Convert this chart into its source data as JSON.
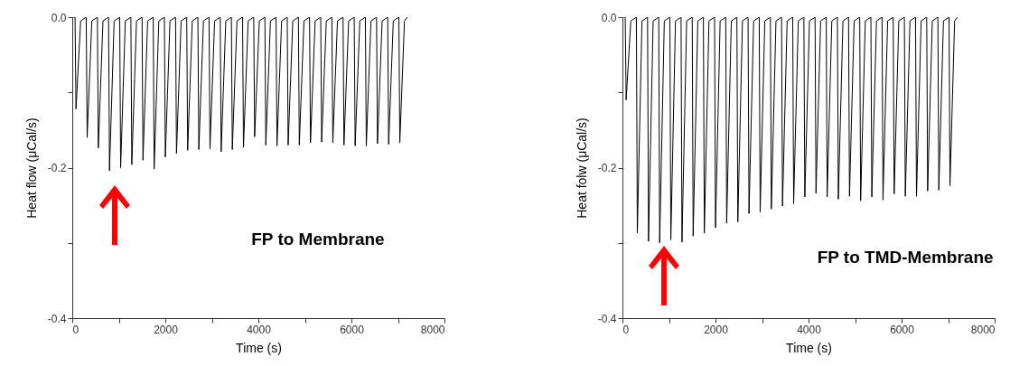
{
  "chart_data": [
    {
      "type": "line",
      "xlabel": "Time (s)",
      "ylabel": "Heat flow (μCal/s)",
      "annotations": [
        "FP to Membrane"
      ],
      "xlim": [
        0,
        8000
      ],
      "ylim": [
        -0.4,
        0
      ],
      "xticks": [
        0,
        {
          "value": 1000,
          "label": null
        },
        2000,
        {
          "value": 3000,
          "label": null
        },
        4000,
        {
          "value": 5000,
          "label": null
        },
        6000,
        {
          "value": 7000,
          "label": null
        },
        8000
      ],
      "yticks": [
        {
          "value": -0.4,
          "label": "-0.4"
        },
        {
          "value": -0.3,
          "label": null
        },
        {
          "value": -0.2,
          "label": "-0.2"
        },
        {
          "value": -0.1,
          "label": null
        },
        {
          "value": 0,
          "label": "0.0"
        }
      ],
      "grid": false,
      "marker": "none",
      "line_style": "solid",
      "series": [
        {
          "color": "#000000",
          "x": [
            0,
            60,
            80,
            180,
            300,
            320,
            420,
            540,
            560,
            660,
            780,
            800,
            900,
            1020,
            1040,
            1140,
            1260,
            1280,
            1380,
            1500,
            1520,
            1620,
            1740,
            1760,
            1860,
            1980,
            2000,
            2100,
            2220,
            2240,
            2340,
            2460,
            2480,
            2580,
            2700,
            2720,
            2820,
            2940,
            2960,
            3060,
            3180,
            3200,
            3300,
            3420,
            3440,
            3540,
            3660,
            3680,
            3780,
            3900,
            3920,
            4020,
            4140,
            4160,
            4260,
            4380,
            4400,
            4500,
            4620,
            4640,
            4740,
            4860,
            4880,
            4980,
            5100,
            5120,
            5220,
            5340,
            5360,
            5460,
            5580,
            5600,
            5700,
            5820,
            5840,
            5940,
            6060,
            6080,
            6180,
            6300,
            6320,
            6420,
            6540,
            6560,
            6660,
            6780,
            6800,
            6900,
            7020,
            7040,
            7140,
            7200
          ],
          "values": [
            0,
            0,
            -0.122,
            -0.005,
            0,
            -0.16,
            -0.005,
            0,
            -0.174,
            -0.005,
            0,
            -0.204,
            -0.005,
            0,
            -0.2,
            -0.005,
            0,
            -0.196,
            -0.005,
            0,
            -0.19,
            -0.005,
            0,
            -0.202,
            -0.005,
            0,
            -0.186,
            -0.005,
            0,
            -0.181,
            -0.005,
            0,
            -0.177,
            -0.005,
            0,
            -0.176,
            -0.005,
            0,
            -0.175,
            -0.005,
            0,
            -0.179,
            -0.005,
            0,
            -0.176,
            -0.005,
            0,
            -0.173,
            -0.005,
            0,
            -0.159,
            -0.005,
            0,
            -0.17,
            -0.005,
            0,
            -0.171,
            -0.005,
            0,
            -0.17,
            -0.005,
            0,
            -0.17,
            -0.005,
            0,
            -0.167,
            -0.005,
            0,
            -0.166,
            -0.005,
            0,
            -0.167,
            -0.005,
            0,
            -0.17,
            -0.005,
            0,
            -0.171,
            -0.005,
            0,
            -0.171,
            -0.005,
            0,
            -0.168,
            -0.005,
            0,
            -0.169,
            -0.005,
            0,
            -0.167,
            -0.005,
            0
          ]
        }
      ]
    },
    {
      "type": "line",
      "xlabel": "Time (s)",
      "ylabel": "Heat folw (μCal/s)",
      "annotations": [
        "FP to TMD-Membrane"
      ],
      "xlim": [
        0,
        8000
      ],
      "ylim": [
        -0.4,
        0
      ],
      "xticks": [
        0,
        {
          "value": 1000,
          "label": null
        },
        2000,
        {
          "value": 3000,
          "label": null
        },
        4000,
        {
          "value": 5000,
          "label": null
        },
        6000,
        {
          "value": 7000,
          "label": null
        },
        8000
      ],
      "yticks": [
        {
          "value": -0.4,
          "label": "-0.4"
        },
        {
          "value": -0.3,
          "label": null
        },
        {
          "value": -0.2,
          "label": "-0.2"
        },
        {
          "value": -0.1,
          "label": null
        },
        {
          "value": 0,
          "label": "0.0"
        }
      ],
      "grid": false,
      "marker": "none",
      "line_style": "solid",
      "series": [
        {
          "color": "#000000",
          "x": [
            0,
            60,
            80,
            180,
            300,
            320,
            420,
            540,
            560,
            660,
            780,
            800,
            900,
            1020,
            1040,
            1140,
            1260,
            1280,
            1380,
            1500,
            1520,
            1620,
            1740,
            1760,
            1860,
            1980,
            2000,
            2100,
            2220,
            2240,
            2340,
            2460,
            2480,
            2580,
            2700,
            2720,
            2820,
            2940,
            2960,
            3060,
            3180,
            3200,
            3300,
            3420,
            3440,
            3540,
            3660,
            3680,
            3780,
            3900,
            3920,
            4020,
            4140,
            4160,
            4260,
            4380,
            4400,
            4500,
            4620,
            4640,
            4740,
            4860,
            4880,
            4980,
            5100,
            5120,
            5220,
            5340,
            5360,
            5460,
            5580,
            5600,
            5700,
            5820,
            5840,
            5940,
            6060,
            6080,
            6180,
            6300,
            6320,
            6420,
            6540,
            6560,
            6660,
            6780,
            6800,
            6900,
            7020,
            7040,
            7140,
            7200
          ],
          "values": [
            0,
            0,
            -0.11,
            -0.005,
            0,
            -0.287,
            -0.005,
            0,
            -0.298,
            -0.005,
            0,
            -0.3,
            -0.005,
            0,
            -0.296,
            -0.005,
            0,
            -0.299,
            -0.005,
            0,
            -0.291,
            -0.005,
            0,
            -0.287,
            -0.005,
            0,
            -0.28,
            -0.005,
            0,
            -0.274,
            -0.005,
            0,
            -0.272,
            -0.005,
            0,
            -0.261,
            -0.005,
            0,
            -0.259,
            -0.005,
            0,
            -0.255,
            -0.005,
            0,
            -0.251,
            -0.005,
            0,
            -0.248,
            -0.005,
            0,
            -0.239,
            -0.005,
            0,
            -0.234,
            -0.005,
            0,
            -0.239,
            -0.005,
            0,
            -0.242,
            -0.005,
            0,
            -0.238,
            -0.005,
            0,
            -0.244,
            -0.005,
            0,
            -0.239,
            -0.005,
            0,
            -0.243,
            -0.005,
            0,
            -0.235,
            -0.005,
            0,
            -0.238,
            -0.005,
            0,
            -0.238,
            -0.005,
            0,
            -0.231,
            -0.005,
            0,
            -0.23,
            -0.005,
            0,
            -0.224,
            -0.005,
            0
          ]
        }
      ]
    }
  ]
}
